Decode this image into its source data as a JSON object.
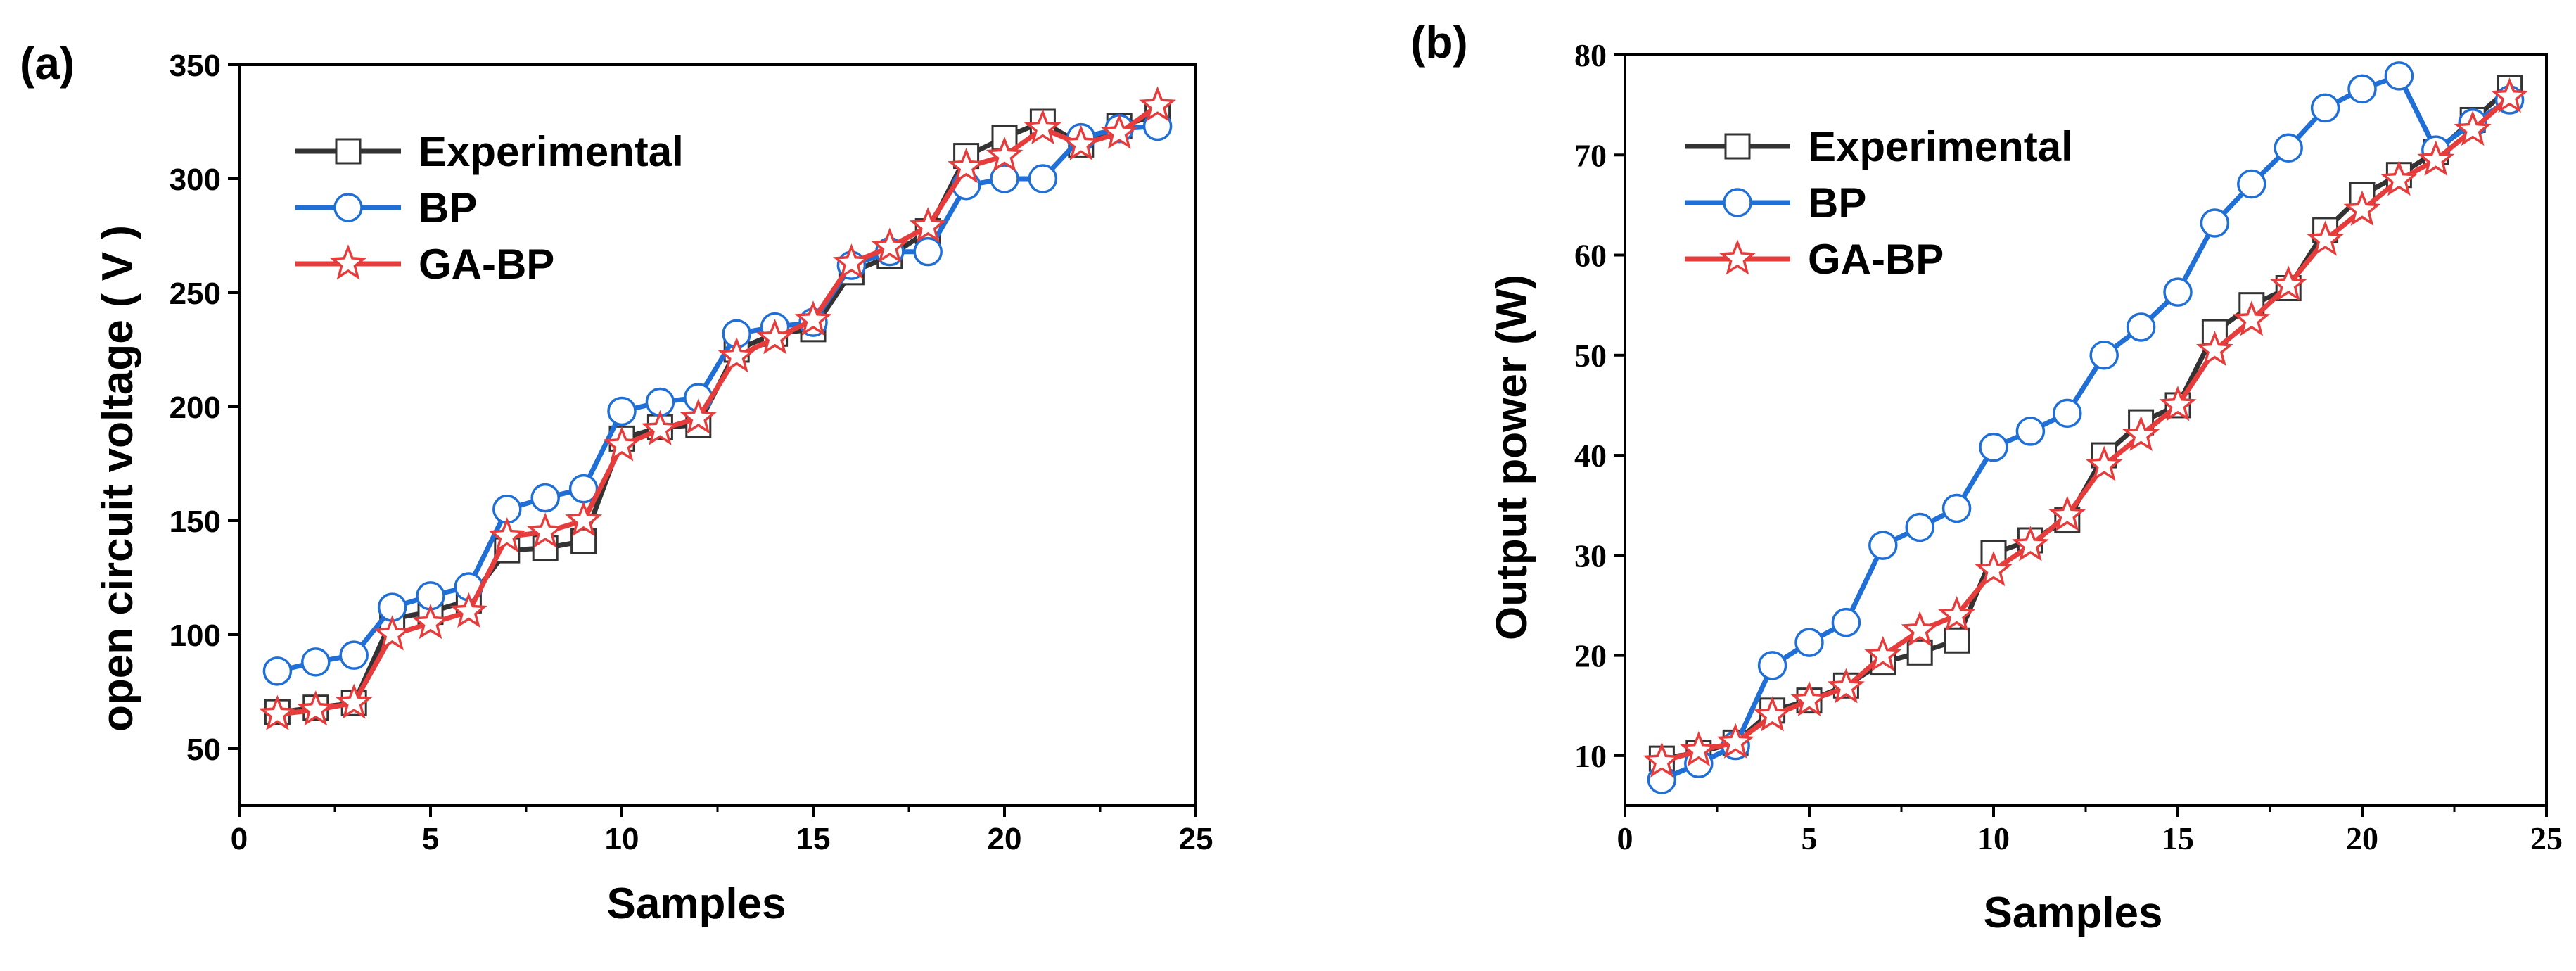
{
  "colors": {
    "experimental": "#333333",
    "bp": "#1f6fd6",
    "gabp": "#e63c3c"
  },
  "chart_data": [
    {
      "panel": "(a)",
      "type": "line",
      "xlabel": "Samples",
      "ylabel": "open circuit voltage ( V )",
      "xlim": [
        0,
        25
      ],
      "ylim": [
        25,
        350
      ],
      "xticks": [
        0,
        5,
        10,
        15,
        20,
        25
      ],
      "yticks": [
        50,
        100,
        150,
        200,
        250,
        300,
        350
      ],
      "legend_position": "top-left",
      "x": [
        1,
        2,
        3,
        4,
        5,
        6,
        7,
        8,
        9,
        10,
        11,
        12,
        13,
        14,
        15,
        16,
        17,
        18,
        19,
        20,
        21,
        22,
        23,
        24
      ],
      "series": [
        {
          "name": "Experimental",
          "marker": "square",
          "color_key": "experimental",
          "values": [
            66,
            68,
            70,
            107,
            110,
            115,
            137,
            138,
            141,
            186,
            191,
            192,
            225,
            232,
            234,
            259,
            266,
            277,
            310,
            318,
            325,
            315,
            323,
            328
          ]
        },
        {
          "name": "BP",
          "marker": "circle",
          "color_key": "bp",
          "values": [
            84,
            88,
            91,
            112,
            117,
            121,
            155,
            160,
            164,
            198,
            202,
            204,
            232,
            235,
            237,
            262,
            268,
            268,
            297,
            300,
            300,
            318,
            322,
            323
          ]
        },
        {
          "name": "GA-BP",
          "marker": "star",
          "color_key": "gabp",
          "values": [
            65,
            67,
            70,
            100,
            105,
            110,
            143,
            145,
            150,
            183,
            190,
            195,
            222,
            230,
            238,
            263,
            270,
            279,
            305,
            310,
            322,
            315,
            320,
            332
          ]
        }
      ]
    },
    {
      "panel": "(b)",
      "type": "line",
      "xlabel": "Samples",
      "ylabel": "Output power (W)",
      "xlim": [
        0,
        25
      ],
      "ylim": [
        5,
        80
      ],
      "xticks": [
        0,
        5,
        10,
        15,
        20,
        25
      ],
      "yticks": [
        10,
        20,
        30,
        40,
        50,
        60,
        70,
        80
      ],
      "legend_position": "top-left",
      "x": [
        1,
        2,
        3,
        4,
        5,
        6,
        7,
        8,
        9,
        10,
        11,
        12,
        13,
        14,
        15,
        16,
        17,
        18,
        19,
        20,
        21,
        22,
        23,
        24
      ],
      "series": [
        {
          "name": "Experimental",
          "marker": "square",
          "color_key": "experimental",
          "values": [
            9.7,
            10.3,
            11.3,
            14.5,
            15.5,
            17.0,
            19.3,
            20.3,
            21.5,
            30.2,
            31.5,
            33.5,
            40.0,
            43.3,
            45.0,
            52.3,
            55.0,
            56.7,
            62.5,
            66.0,
            68.0,
            70.3,
            73.5,
            76.7
          ]
        },
        {
          "name": "BP",
          "marker": "circle",
          "color_key": "bp",
          "values": [
            7.6,
            9.2,
            11.0,
            19.0,
            21.3,
            23.3,
            31.0,
            32.8,
            34.7,
            40.8,
            42.4,
            44.2,
            50.0,
            52.8,
            56.3,
            63.2,
            67.1,
            70.7,
            74.7,
            76.6,
            77.9,
            70.5,
            73.2,
            75.5
          ]
        },
        {
          "name": "GA-BP",
          "marker": "star",
          "color_key": "gabp",
          "values": [
            9.4,
            10.5,
            11.3,
            14.0,
            15.5,
            16.8,
            20.0,
            22.5,
            24.0,
            28.5,
            31.0,
            34.0,
            39.0,
            42.0,
            45.0,
            50.5,
            53.5,
            57.0,
            61.5,
            64.5,
            67.5,
            69.5,
            72.5,
            75.8
          ]
        }
      ]
    }
  ]
}
